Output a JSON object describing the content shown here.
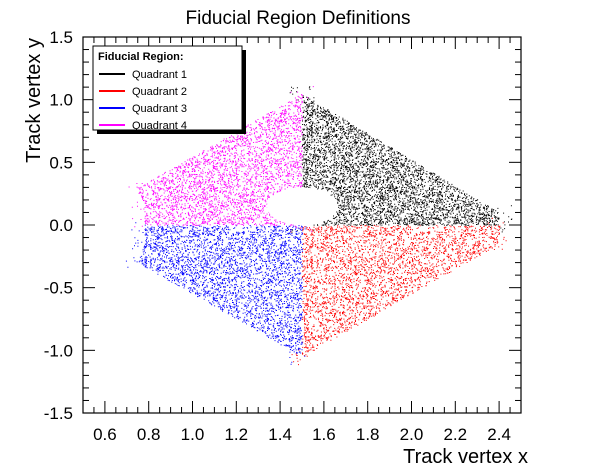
{
  "chart_data": {
    "type": "scatter",
    "title": "Fiducial Region Definitions",
    "xlabel": "Track vertex x",
    "ylabel": "Track vertex y",
    "xlim": [
      0.5,
      2.5
    ],
    "ylim": [
      -1.5,
      1.5
    ],
    "x_ticks": [
      "0.6",
      "0.8",
      "1.0",
      "1.2",
      "1.4",
      "1.6",
      "1.8",
      "2.0",
      "2.2",
      "2.4"
    ],
    "y_ticks": [
      "1.5",
      "1.0",
      "0.5",
      "0.0",
      "-0.5",
      "-1.0",
      "-1.5"
    ],
    "grid": false,
    "legend": {
      "title": "Fiducial Region:",
      "placement": "top-left"
    },
    "hole": {
      "center": [
        1.5,
        0.15
      ],
      "radius_x": 0.16,
      "radius_y": 0.15
    },
    "series": [
      {
        "name": "Quadrant 1",
        "color": "#000000",
        "region": [
          [
            1.5,
            0.0
          ],
          [
            2.4,
            0.0
          ],
          [
            2.4,
            0.1
          ],
          [
            1.5,
            1.05
          ]
        ]
      },
      {
        "name": "Quadrant 2",
        "color": "#ff0000",
        "region": [
          [
            1.5,
            0.0
          ],
          [
            2.4,
            0.0
          ],
          [
            2.4,
            -0.15
          ],
          [
            1.5,
            -1.05
          ]
        ]
      },
      {
        "name": "Quadrant 3",
        "color": "#0000ff",
        "region": [
          [
            0.78,
            0.0
          ],
          [
            1.5,
            0.0
          ],
          [
            1.5,
            -1.05
          ],
          [
            0.75,
            -0.3
          ],
          [
            0.78,
            -0.15
          ]
        ]
      },
      {
        "name": "Quadrant 4",
        "color": "#ff00ff",
        "region": [
          [
            0.75,
            0.3
          ],
          [
            1.5,
            1.05
          ],
          [
            1.5,
            0.0
          ],
          [
            0.78,
            0.0
          ],
          [
            0.78,
            0.15
          ]
        ]
      }
    ]
  }
}
